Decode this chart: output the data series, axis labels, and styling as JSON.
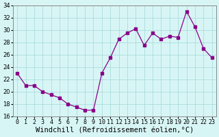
{
  "x": [
    0,
    1,
    2,
    3,
    4,
    5,
    6,
    7,
    8,
    9,
    10,
    11,
    12,
    13,
    14,
    15,
    16,
    17,
    18,
    19,
    20,
    21,
    22,
    23
  ],
  "y": [
    23,
    21,
    21,
    20,
    19.5,
    19,
    18,
    17.5,
    17,
    17,
    23,
    25.5,
    28.5,
    29.5,
    30.2,
    27.5,
    29.5,
    28.5,
    29,
    28.8,
    33,
    30.5,
    27,
    25.5
  ],
  "line_color": "#880088",
  "marker_color": "#880088",
  "bg_color": "#d8f5f5",
  "grid_color": "#aadddd",
  "xlabel": "Windchill (Refroidissement éolien,°C)",
  "xlim": [
    -0.5,
    23.5
  ],
  "ylim": [
    16,
    34
  ],
  "xtick_labels": [
    "0",
    "1",
    "2",
    "3",
    "4",
    "5",
    "6",
    "7",
    "8",
    "9",
    "10",
    "11",
    "12",
    "13",
    "14",
    "15",
    "16",
    "17",
    "18",
    "19",
    "20",
    "21",
    "22",
    "23"
  ],
  "xlabel_fontsize": 7.5,
  "tick_fontsize": 6.0
}
